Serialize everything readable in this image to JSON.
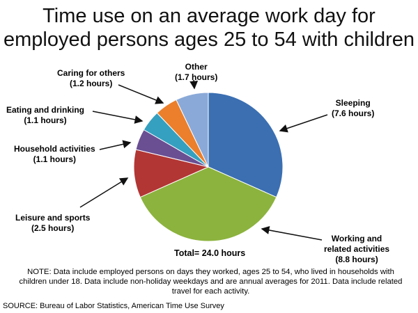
{
  "chart_data": {
    "type": "pie",
    "title": "Time use on an average work day for employed persons ages 25 to 54 with children",
    "unit": "hours",
    "slices": [
      {
        "label": "Sleeping",
        "value": 7.6,
        "display": "(7.6 hours)",
        "color": "#3b6fb2"
      },
      {
        "label": "Working and related activities",
        "value": 8.8,
        "display": "(8.8 hours)",
        "color": "#8cb33e"
      },
      {
        "label": "Leisure and sports",
        "value": 2.5,
        "display": "(2.5 hours)",
        "color": "#b23634"
      },
      {
        "label": "Household activities",
        "value": 1.1,
        "display": "(1.1 hours)",
        "color": "#6a4f93"
      },
      {
        "label": "Eating and drinking",
        "value": 1.1,
        "display": "(1.1 hours)",
        "color": "#35a0c0"
      },
      {
        "label": "Caring for others",
        "value": 1.2,
        "display": "(1.2 hours)",
        "color": "#eb7f2c"
      },
      {
        "label": "Other",
        "value": 1.7,
        "display": "(1.7 hours)",
        "color": "#8aa9d8"
      }
    ],
    "total_label": "Total= 24.0 hours"
  },
  "labels": {
    "working_line1": "Working and",
    "working_line2": "related activities"
  },
  "note": "NOTE: Data include employed persons on days they worked, ages 25 to 54, who lived in households with children under 18. Data include non-holiday weekdays and are annual averages for 2011. Data include related travel for each activity.",
  "source": "SOURCE: Bureau of Labor Statistics, American Time Use Survey"
}
